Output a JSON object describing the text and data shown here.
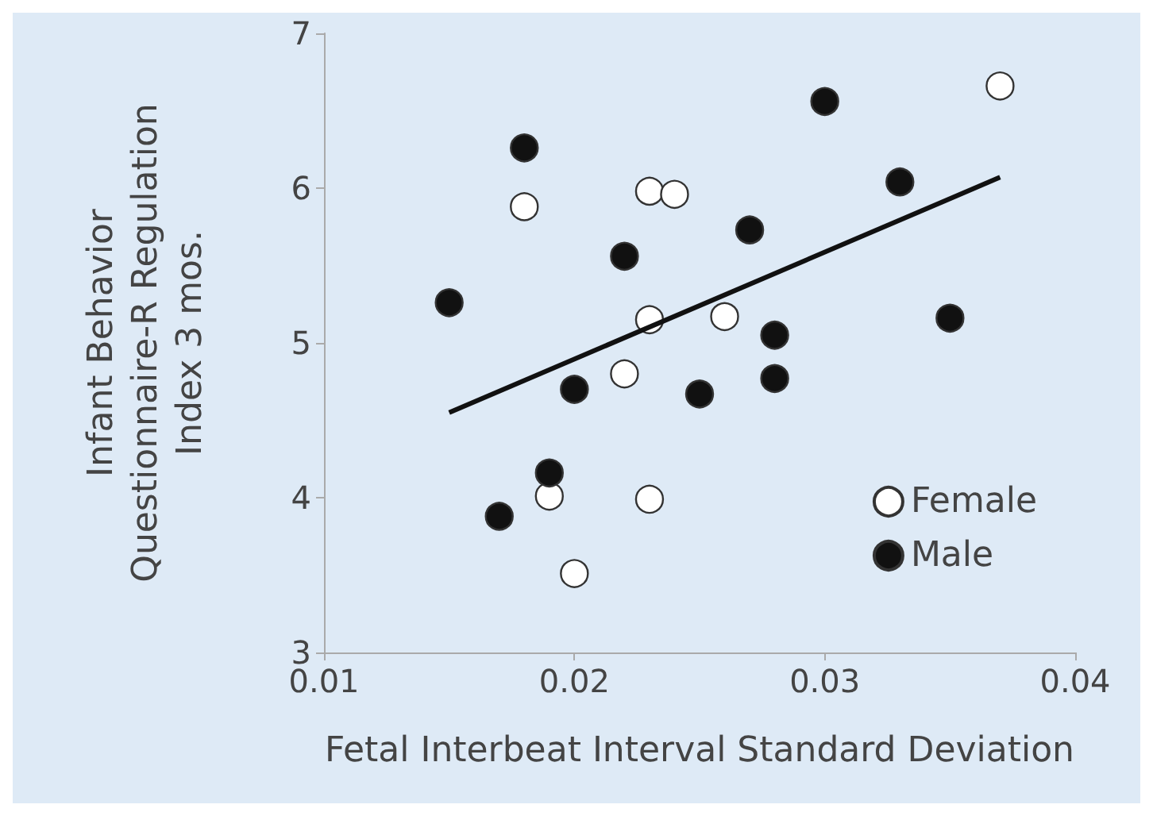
{
  "chart_data": {
    "type": "scatter",
    "xlabel": "Fetal Interbeat Interval Standard Deviation",
    "ylabel": "Infant Behavior\nQuestionnaire-R Regulation\nIndex 3 mos.",
    "xlim": [
      0.01,
      0.04
    ],
    "xticks": [
      0.01,
      0.02,
      0.03,
      0.04
    ],
    "ylim": [
      3,
      7
    ],
    "yticks": [
      3,
      4,
      5,
      6,
      7
    ],
    "grid": false,
    "legend": "bottom right",
    "marker": "circle",
    "series": [
      {
        "name": "Female",
        "color": "#ffffff",
        "x": [
          0.037,
          0.018,
          0.023,
          0.024,
          0.023,
          0.026,
          0.022,
          0.019,
          0.023,
          0.02
        ],
        "values": [
          6.66,
          5.88,
          5.98,
          5.96,
          5.15,
          5.17,
          4.8,
          4.01,
          3.99,
          3.51
        ]
      },
      {
        "name": "Male",
        "color": "#111111",
        "x": [
          0.03,
          0.018,
          0.033,
          0.027,
          0.022,
          0.015,
          0.035,
          0.028,
          0.028,
          0.025,
          0.02,
          0.019,
          0.017
        ],
        "values": [
          6.56,
          6.26,
          6.04,
          5.73,
          5.56,
          5.26,
          5.16,
          5.05,
          4.77,
          4.67,
          4.7,
          4.16,
          3.88
        ]
      },
      {
        "type": "line",
        "marker": "none",
        "color": "#111111",
        "x": [
          0.015,
          0.037
        ],
        "values": [
          4.55,
          6.07
        ]
      }
    ]
  }
}
